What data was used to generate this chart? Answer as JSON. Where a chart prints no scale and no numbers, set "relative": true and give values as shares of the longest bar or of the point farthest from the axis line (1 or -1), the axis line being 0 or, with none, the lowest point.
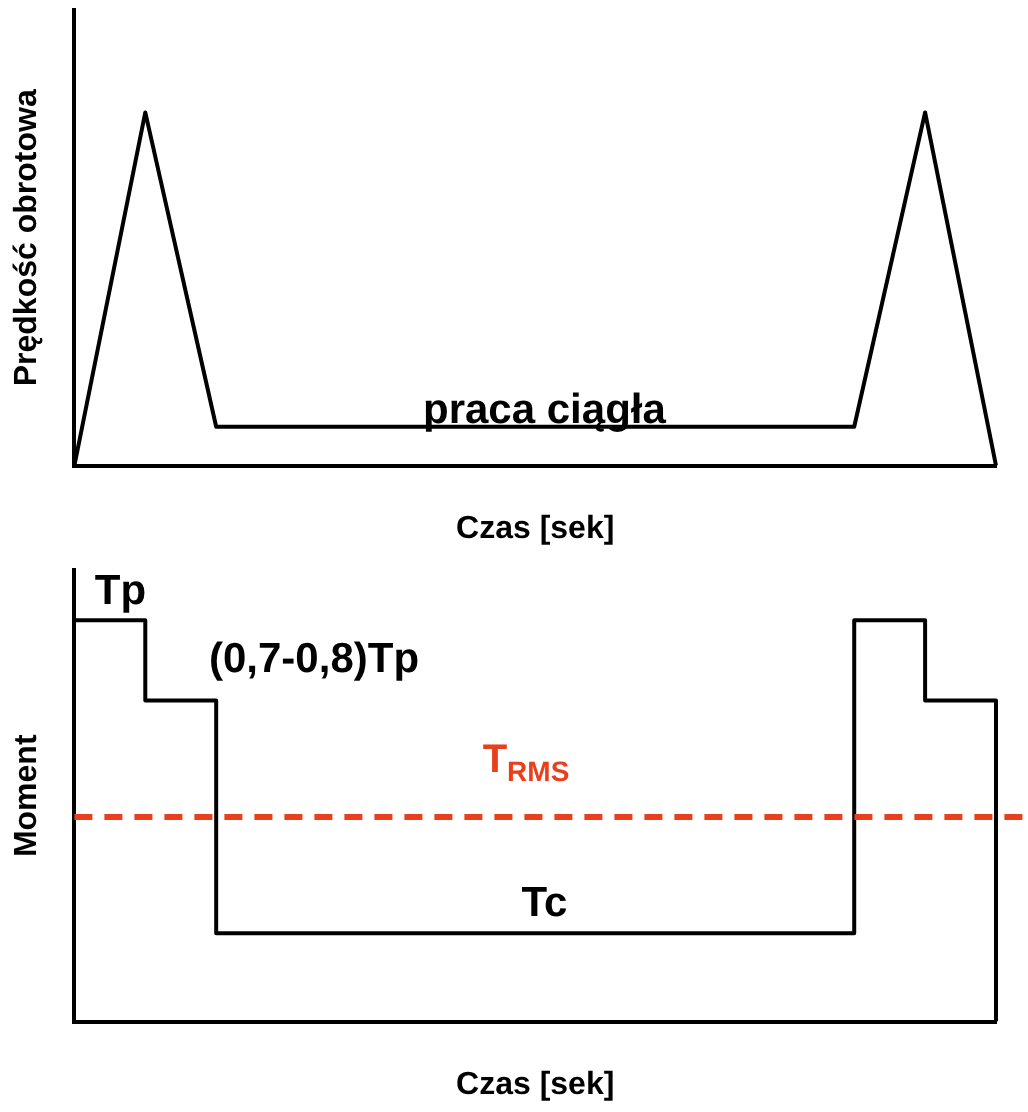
{
  "chart_data": [
    {
      "type": "line",
      "relative": true,
      "ylabel": "Prędkość obrotowa",
      "xlabel": "Czas [sek]",
      "categories": [
        null,
        null,
        null,
        null,
        null,
        null,
        null,
        null,
        null,
        null,
        null,
        null,
        null,
        null
      ],
      "series": [
        {
          "color": "#000000",
          "values": [
            0,
            1,
            0.11,
            0.11,
            0.11,
            0.11,
            0.11,
            0.11,
            0.11,
            0.11,
            0.11,
            0.11,
            1,
            0
          ]
        }
      ],
      "annotations": [
        "praca ciągła"
      ],
      "legend": false,
      "grid": false
    },
    {
      "type": "step",
      "relative": true,
      "ylabel": "Moment",
      "xlabel": "Czas [sek]",
      "categories": [
        null,
        null,
        null,
        null,
        null,
        null,
        null,
        null,
        null,
        null,
        null,
        null,
        null,
        null
      ],
      "series": [
        {
          "color": "#000000",
          "values": [
            1,
            0.8,
            0.22,
            0.22,
            0.22,
            0.22,
            0.22,
            0.22,
            0.22,
            0.22,
            0.22,
            1,
            0.8,
            0
          ]
        }
      ],
      "ref_lines": [
        {
          "axis": "y",
          "value": 0.51,
          "label": "T$_{RMS}$",
          "color": "#e8401c",
          "line_style": "dashed"
        }
      ],
      "annotations": [
        "Tp",
        "(0,7-0,8)Tp",
        "Tc"
      ],
      "legend": false,
      "grid": false
    }
  ]
}
